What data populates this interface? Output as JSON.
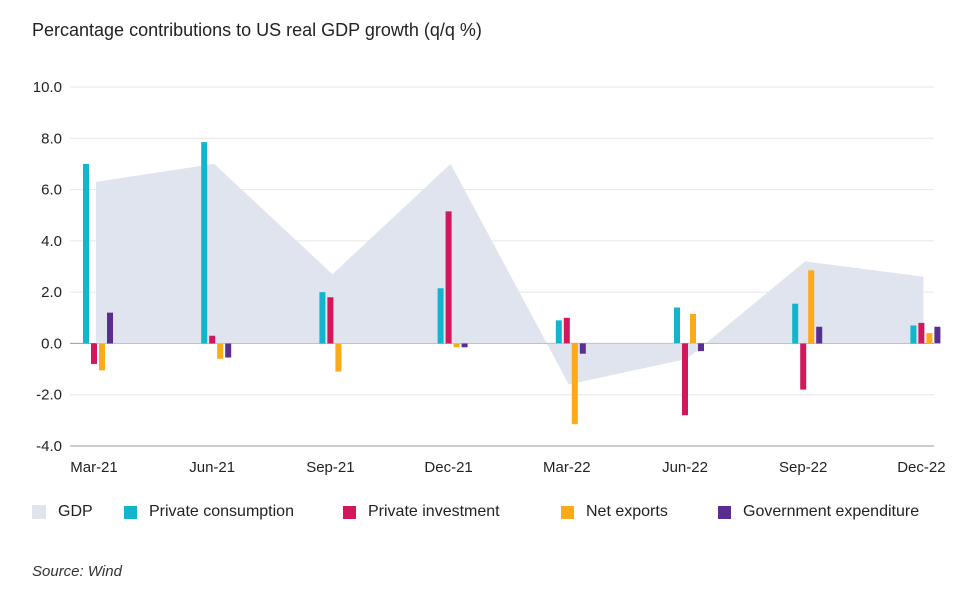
{
  "title": "Percantage contributions to US real GDP growth (q/q %)",
  "source": "Source: Wind",
  "colors": {
    "gdp": "#dfe4ee",
    "private_consumption": "#12b5cb",
    "private_investment": "#d2185c",
    "net_exports": "#fbaa1a",
    "government_expenditure": "#5a2d91",
    "grid": "#e6e6e6",
    "axis": "#888888"
  },
  "legend": [
    {
      "label": "GDP",
      "color_key": "gdp"
    },
    {
      "label": "Private consumption",
      "color_key": "private_consumption"
    },
    {
      "label": "Private investment",
      "color_key": "private_investment"
    },
    {
      "label": "Net exports",
      "color_key": "net_exports"
    },
    {
      "label": "Government expenditure",
      "color_key": "government_expenditure"
    }
  ],
  "chart_data": {
    "type": "bar",
    "categories": [
      "Mar-21",
      "Jun-21",
      "Sep-21",
      "Dec-21",
      "Mar-22",
      "Jun-22",
      "Sep-22",
      "Dec-22"
    ],
    "ylim": [
      -4,
      10
    ],
    "yticks": [
      "-4.0",
      "-2.0",
      "0.0",
      "2.0",
      "4.0",
      "6.0",
      "8.0",
      "10.0"
    ],
    "grid": true,
    "legend_position": "bottom",
    "area_series": {
      "name": "GDP",
      "color_key": "gdp",
      "values": [
        6.3,
        7.0,
        2.7,
        7.0,
        -1.6,
        -0.6,
        3.2,
        2.6
      ]
    },
    "series": [
      {
        "name": "Private consumption",
        "color_key": "private_consumption",
        "values": [
          7.0,
          7.85,
          2.0,
          2.15,
          0.9,
          1.4,
          1.55,
          0.7
        ]
      },
      {
        "name": "Private investment",
        "color_key": "private_investment",
        "values": [
          -0.8,
          0.3,
          1.8,
          5.15,
          1.0,
          -2.8,
          -1.8,
          0.8
        ]
      },
      {
        "name": "Net exports",
        "color_key": "net_exports",
        "values": [
          -1.05,
          -0.6,
          -1.1,
          -0.15,
          -3.15,
          1.15,
          2.85,
          0.4
        ]
      },
      {
        "name": "Government expenditure",
        "color_key": "government_expenditure",
        "values": [
          1.2,
          -0.55,
          0.0,
          -0.15,
          -0.4,
          -0.3,
          0.65,
          0.65
        ]
      }
    ]
  }
}
